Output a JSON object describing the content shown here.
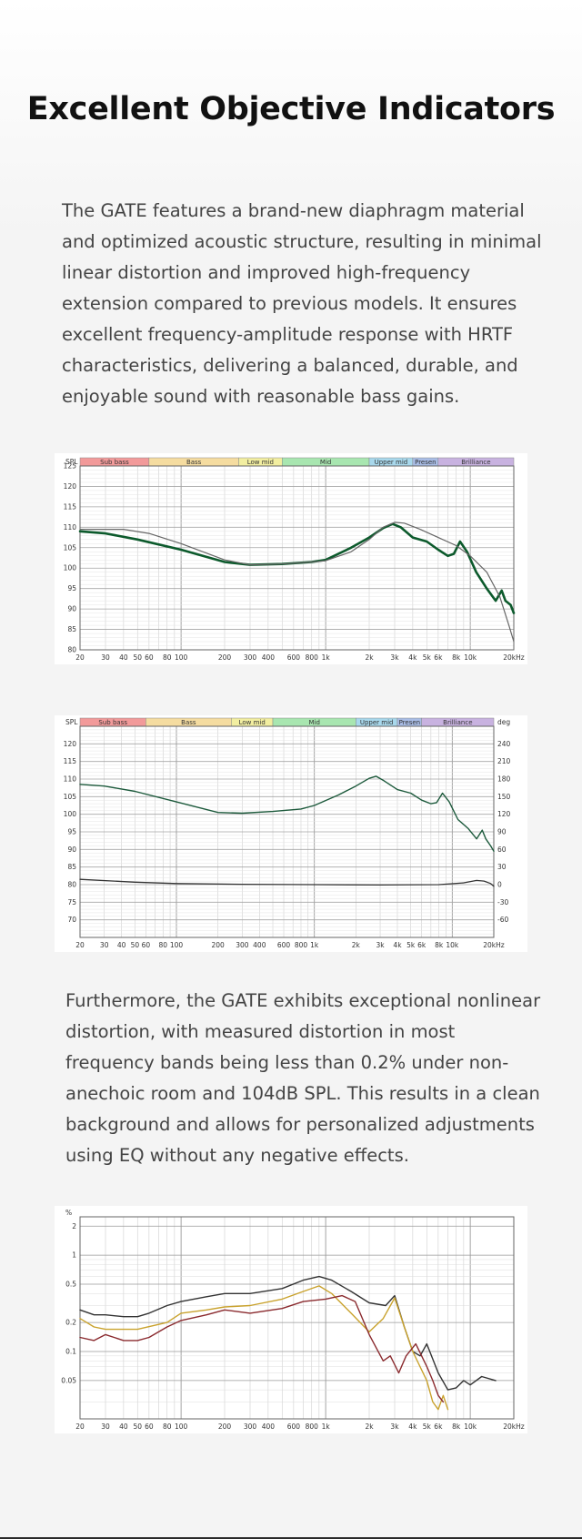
{
  "title": "Excellent Objective Indicators",
  "paragraph1": "The GATE features a brand-new diaphragm material and optimized acoustic structure, resulting in minimal linear distortion and improved high-frequency extension compared to previous models. It ensures excellent frequency-amplitude response with HRTF characteristics, delivering a balanced, durable, and enjoyable sound with reasonable bass gains.",
  "paragraph2": "Furthermore, the GATE exhibits exceptional nonlinear distortion, with measured distortion in most frequency bands being less than 0.2% under non-anechoic room and 104dB SPL. This results in a clean background and allows for personalized adjustments using EQ without any negative effects.",
  "chart_data": [
    {
      "type": "line",
      "ylabel": "SPL",
      "xscale": "log",
      "xlim": [
        20,
        20000
      ],
      "ylim": [
        80,
        125
      ],
      "yticks": [
        80,
        85,
        90,
        95,
        100,
        105,
        110,
        115,
        120,
        125
      ],
      "xticks": [
        20,
        30,
        40,
        50,
        60,
        80,
        100,
        200,
        300,
        400,
        600,
        800,
        1000,
        2000,
        3000,
        4000,
        5000,
        6000,
        8000,
        10000,
        20000
      ],
      "xtick_labels": [
        "20",
        "30",
        "40",
        "50",
        "60",
        "80",
        "100",
        "200",
        "300",
        "400",
        "600",
        "800",
        "1k",
        "2k",
        "3k",
        "4k",
        "5k",
        "6k",
        "8k",
        "10k",
        "20kHz"
      ],
      "bands": [
        {
          "name": "Sub bass",
          "from": 20,
          "to": 60,
          "color": "#f29a9a"
        },
        {
          "name": "Bass",
          "from": 60,
          "to": 250,
          "color": "#f5dca0"
        },
        {
          "name": "Low mid",
          "from": 250,
          "to": 500,
          "color": "#f2eea0"
        },
        {
          "name": "Mid",
          "from": 500,
          "to": 2000,
          "color": "#a8e6b0"
        },
        {
          "name": "Upper mid",
          "from": 2000,
          "to": 4000,
          "color": "#a8d8ec"
        },
        {
          "name": "Presen",
          "from": 4000,
          "to": 6000,
          "color": "#a9bde6"
        },
        {
          "name": "Brilliance",
          "from": 6000,
          "to": 20000,
          "color": "#c8b2e0"
        }
      ],
      "series": [
        {
          "color": "#0c5a2c",
          "width": 2.6,
          "points": [
            [
              20,
              109
            ],
            [
              30,
              108.5
            ],
            [
              50,
              107
            ],
            [
              100,
              104.5
            ],
            [
              200,
              101.5
            ],
            [
              300,
              100.8
            ],
            [
              500,
              101
            ],
            [
              800,
              101.5
            ],
            [
              1000,
              102
            ],
            [
              1500,
              105
            ],
            [
              2000,
              107.5
            ],
            [
              2500,
              109.8
            ],
            [
              2900,
              110.8
            ],
            [
              3300,
              110
            ],
            [
              4000,
              107.5
            ],
            [
              5000,
              106.5
            ],
            [
              6000,
              104.5
            ],
            [
              7000,
              103
            ],
            [
              7700,
              103.5
            ],
            [
              8500,
              106.5
            ],
            [
              9500,
              104
            ],
            [
              11000,
              99
            ],
            [
              13000,
              95
            ],
            [
              15000,
              92
            ],
            [
              16500,
              94.5
            ],
            [
              17500,
              92
            ],
            [
              19000,
              91
            ],
            [
              20000,
              89
            ]
          ]
        },
        {
          "color": "#666666",
          "width": 1.2,
          "points": [
            [
              20,
              109.5
            ],
            [
              40,
              109.5
            ],
            [
              60,
              108.5
            ],
            [
              100,
              106
            ],
            [
              200,
              102
            ],
            [
              300,
              100.8
            ],
            [
              500,
              101
            ],
            [
              800,
              101.5
            ],
            [
              1000,
              101.8
            ],
            [
              1500,
              104
            ],
            [
              2000,
              107
            ],
            [
              2500,
              110
            ],
            [
              3000,
              111.2
            ],
            [
              3500,
              111
            ],
            [
              4500,
              109.5
            ],
            [
              6000,
              107.5
            ],
            [
              8000,
              105.5
            ],
            [
              10000,
              103
            ],
            [
              13000,
              99
            ],
            [
              16000,
              93
            ],
            [
              18500,
              86
            ],
            [
              20000,
              82
            ]
          ]
        }
      ]
    },
    {
      "type": "line",
      "ylabel": "SPL",
      "y2label": "deg",
      "xscale": "log",
      "xlim": [
        20,
        20000
      ],
      "ylim": [
        65,
        125
      ],
      "yticks": [
        70,
        75,
        80,
        85,
        90,
        95,
        100,
        105,
        110,
        115,
        120
      ],
      "y2ticks": [
        -60,
        -30,
        0,
        30,
        60,
        90,
        120,
        150,
        180,
        210,
        240
      ],
      "y2lim": [
        -90,
        270
      ],
      "xticks": [
        20,
        30,
        40,
        50,
        60,
        80,
        100,
        200,
        300,
        400,
        600,
        800,
        1000,
        2000,
        3000,
        4000,
        5000,
        6000,
        8000,
        10000,
        20000
      ],
      "xtick_labels": [
        "20",
        "30",
        "40",
        "50",
        "60",
        "80",
        "100",
        "200",
        "300",
        "400",
        "600",
        "800",
        "1k",
        "2k",
        "3k",
        "4k",
        "5k",
        "6k",
        "8k",
        "10k",
        "20kHz"
      ],
      "bands": [
        {
          "name": "Sub bass",
          "from": 20,
          "to": 60,
          "color": "#f29a9a"
        },
        {
          "name": "Bass",
          "from": 60,
          "to": 250,
          "color": "#f5dca0"
        },
        {
          "name": "Low mid",
          "from": 250,
          "to": 500,
          "color": "#f2eea0"
        },
        {
          "name": "Mid",
          "from": 500,
          "to": 2000,
          "color": "#a8e6b0"
        },
        {
          "name": "Upper mid",
          "from": 2000,
          "to": 4000,
          "color": "#a8d8ec"
        },
        {
          "name": "Presen",
          "from": 4000,
          "to": 6000,
          "color": "#a9bde6"
        },
        {
          "name": "Brilliance",
          "from": 6000,
          "to": 20000,
          "color": "#c8b2e0"
        }
      ],
      "series": [
        {
          "color": "#1d5a3c",
          "width": 1.4,
          "points": [
            [
              20,
              108.5
            ],
            [
              30,
              108
            ],
            [
              50,
              106.5
            ],
            [
              100,
              103.5
            ],
            [
              200,
              100.5
            ],
            [
              300,
              100.3
            ],
            [
              500,
              100.8
            ],
            [
              800,
              101.5
            ],
            [
              1000,
              102.5
            ],
            [
              1500,
              105.5
            ],
            [
              2000,
              108
            ],
            [
              2500,
              110.2
            ],
            [
              2800,
              110.8
            ],
            [
              3200,
              109.5
            ],
            [
              4000,
              107
            ],
            [
              5000,
              106
            ],
            [
              6000,
              104
            ],
            [
              7000,
              103
            ],
            [
              7700,
              103.3
            ],
            [
              8500,
              106
            ],
            [
              9500,
              103.5
            ],
            [
              11000,
              98.5
            ],
            [
              13000,
              96
            ],
            [
              15000,
              93
            ],
            [
              16500,
              95.5
            ],
            [
              17500,
              93
            ],
            [
              19000,
              91
            ],
            [
              20000,
              89.5
            ]
          ]
        },
        {
          "color": "#333333",
          "width": 1.3,
          "points": [
            [
              20,
              81.5
            ],
            [
              50,
              80.7
            ],
            [
              100,
              80.3
            ],
            [
              300,
              80.1
            ],
            [
              1000,
              80
            ],
            [
              3000,
              79.9
            ],
            [
              8000,
              80
            ],
            [
              12000,
              80.5
            ],
            [
              15000,
              81.2
            ],
            [
              17000,
              81
            ],
            [
              19000,
              80.3
            ],
            [
              20000,
              79.5
            ]
          ]
        }
      ]
    },
    {
      "type": "line",
      "ylabel": "%",
      "yscale": "log",
      "xscale": "log",
      "xlim": [
        20,
        20000
      ],
      "ylim": [
        0.02,
        2.5
      ],
      "yticks": [
        0.05,
        0.1,
        0.2,
        0.5,
        1,
        2
      ],
      "ytick_labels": [
        "0.05",
        "0.1",
        "0.2",
        "0.5",
        "1",
        "2"
      ],
      "xticks": [
        20,
        30,
        40,
        50,
        60,
        80,
        100,
        200,
        300,
        400,
        600,
        800,
        1000,
        2000,
        3000,
        4000,
        5000,
        6000,
        8000,
        10000,
        20000
      ],
      "xtick_labels": [
        "20",
        "30",
        "40",
        "50",
        "60",
        "80",
        "100",
        "200",
        "300",
        "400",
        "600",
        "800",
        "1k",
        "2k",
        "3k",
        "4k",
        "5k",
        "6k",
        "8k",
        "10k",
        "20kHz"
      ],
      "series": [
        {
          "color": "#333333",
          "width": 1.4,
          "points": [
            [
              20,
              0.27
            ],
            [
              25,
              0.24
            ],
            [
              30,
              0.24
            ],
            [
              40,
              0.23
            ],
            [
              50,
              0.23
            ],
            [
              60,
              0.25
            ],
            [
              80,
              0.3
            ],
            [
              100,
              0.33
            ],
            [
              150,
              0.37
            ],
            [
              200,
              0.4
            ],
            [
              300,
              0.4
            ],
            [
              500,
              0.45
            ],
            [
              700,
              0.55
            ],
            [
              900,
              0.6
            ],
            [
              1100,
              0.55
            ],
            [
              1500,
              0.42
            ],
            [
              2000,
              0.32
            ],
            [
              2600,
              0.3
            ],
            [
              3000,
              0.38
            ],
            [
              3500,
              0.18
            ],
            [
              4000,
              0.1
            ],
            [
              4500,
              0.09
            ],
            [
              5000,
              0.12
            ],
            [
              6000,
              0.06
            ],
            [
              7000,
              0.04
            ],
            [
              8000,
              0.042
            ],
            [
              9000,
              0.05
            ],
            [
              10000,
              0.045
            ],
            [
              12000,
              0.055
            ],
            [
              15000,
              0.05
            ]
          ]
        },
        {
          "color": "#c9a22d",
          "width": 1.4,
          "points": [
            [
              20,
              0.22
            ],
            [
              25,
              0.18
            ],
            [
              30,
              0.17
            ],
            [
              50,
              0.17
            ],
            [
              80,
              0.2
            ],
            [
              100,
              0.25
            ],
            [
              150,
              0.27
            ],
            [
              200,
              0.29
            ],
            [
              300,
              0.3
            ],
            [
              500,
              0.35
            ],
            [
              700,
              0.42
            ],
            [
              900,
              0.48
            ],
            [
              1100,
              0.4
            ],
            [
              1500,
              0.25
            ],
            [
              2000,
              0.16
            ],
            [
              2500,
              0.22
            ],
            [
              3000,
              0.36
            ],
            [
              3500,
              0.18
            ],
            [
              4000,
              0.1
            ],
            [
              5000,
              0.05
            ],
            [
              5500,
              0.03
            ],
            [
              6000,
              0.025
            ],
            [
              6500,
              0.035
            ],
            [
              7000,
              0.025
            ]
          ]
        },
        {
          "color": "#8a2a2e",
          "width": 1.4,
          "points": [
            [
              20,
              0.14
            ],
            [
              25,
              0.13
            ],
            [
              30,
              0.15
            ],
            [
              40,
              0.13
            ],
            [
              50,
              0.13
            ],
            [
              60,
              0.14
            ],
            [
              80,
              0.18
            ],
            [
              100,
              0.21
            ],
            [
              150,
              0.24
            ],
            [
              200,
              0.27
            ],
            [
              300,
              0.25
            ],
            [
              500,
              0.28
            ],
            [
              700,
              0.33
            ],
            [
              1000,
              0.35
            ],
            [
              1300,
              0.38
            ],
            [
              1600,
              0.33
            ],
            [
              2000,
              0.15
            ],
            [
              2500,
              0.08
            ],
            [
              2800,
              0.09
            ],
            [
              3200,
              0.06
            ],
            [
              3600,
              0.09
            ],
            [
              4200,
              0.12
            ],
            [
              5000,
              0.07
            ],
            [
              5500,
              0.05
            ],
            [
              6000,
              0.035
            ],
            [
              6500,
              0.03
            ]
          ]
        }
      ]
    }
  ]
}
